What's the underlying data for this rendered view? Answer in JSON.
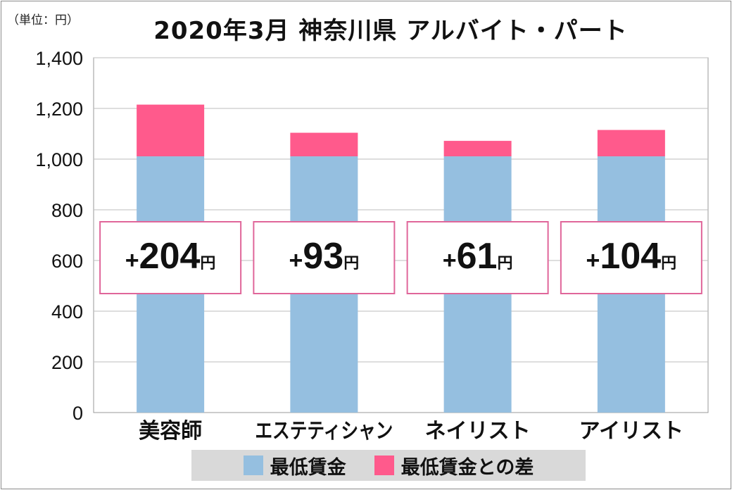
{
  "unit_label": "（単位：円）",
  "colors": {
    "base": "#95bfe0",
    "diff": "#ff5a8c",
    "box_border": "#e0669a",
    "grid": "#bdbdbd"
  },
  "chart_data": {
    "type": "bar",
    "stacked": true,
    "title": "2020年3月 神奈川県 アルバイト・パート",
    "categories": [
      "美容師",
      "エステティシャン",
      "ネイリスト",
      "アイリスト"
    ],
    "series": [
      {
        "name": "最低賃金",
        "values": [
          1011,
          1011,
          1011,
          1011
        ]
      },
      {
        "name": "最低賃金との差",
        "values": [
          204,
          93,
          61,
          104
        ]
      }
    ],
    "annotations": [
      {
        "sign": "+",
        "value": "204",
        "unit": "円"
      },
      {
        "sign": "+",
        "value": "93",
        "unit": "円"
      },
      {
        "sign": "+",
        "value": "61",
        "unit": "円"
      },
      {
        "sign": "+",
        "value": "104",
        "unit": "円"
      }
    ],
    "ylim": [
      0,
      1400
    ],
    "yticks": [
      0,
      200,
      400,
      600,
      800,
      1000,
      1200,
      1400
    ],
    "ytick_labels": [
      "0",
      "200",
      "400",
      "600",
      "800",
      "1,000",
      "1,200",
      "1,400"
    ],
    "grid": true,
    "legend_position": "bottom"
  }
}
